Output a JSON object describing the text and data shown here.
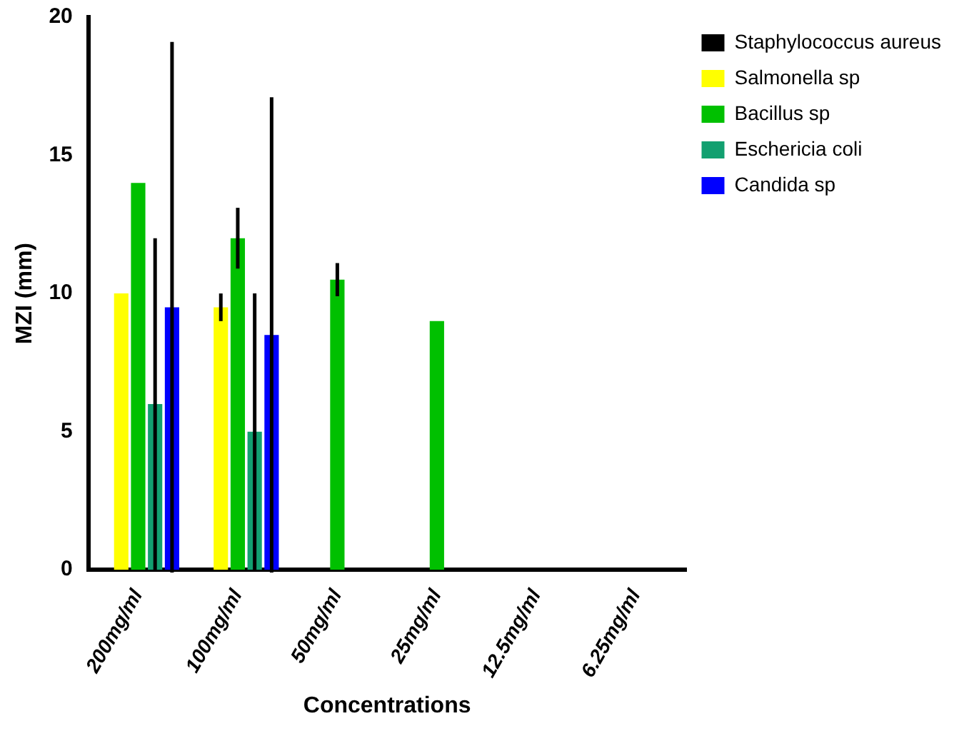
{
  "chart_data": {
    "type": "bar",
    "xlabel": "Concentrations",
    "ylabel": "MZI (mm)",
    "categories": [
      "200mg/ml",
      "100mg/ml",
      "50mg/ml",
      "25mg/ml",
      "12.5mg/ml",
      "6.25mg/ml"
    ],
    "series": [
      {
        "name": "Staphylococcus aureus",
        "color": "#000000",
        "values": [
          0,
          0,
          0,
          0,
          0,
          0
        ]
      },
      {
        "name": "Salmonella sp",
        "color": "#ffff00",
        "values": [
          10,
          9.5,
          0,
          0,
          0,
          0
        ],
        "errors": [
          0,
          0.5,
          null,
          null,
          null,
          null
        ]
      },
      {
        "name": "Bacillus sp",
        "color": "#00c000",
        "values": [
          14,
          12,
          10.5,
          9,
          0,
          0
        ],
        "errors": [
          0,
          1.1,
          0.6,
          0,
          null,
          null
        ]
      },
      {
        "name": "Eschericia coli",
        "color": "#12a070",
        "values": [
          6,
          5,
          0,
          0,
          0,
          0
        ],
        "errors": [
          6,
          5,
          null,
          null,
          null,
          null
        ]
      },
      {
        "name": "Candida sp",
        "color": "#0000ff",
        "values": [
          9.5,
          8.5,
          0,
          0,
          0,
          0
        ],
        "errors": [
          9.6,
          8.6,
          null,
          null,
          null,
          null
        ]
      }
    ],
    "ylim": [
      0,
      20
    ],
    "yticks": [
      0,
      5,
      10,
      15,
      20
    ],
    "grid": false,
    "legend": "top right"
  }
}
